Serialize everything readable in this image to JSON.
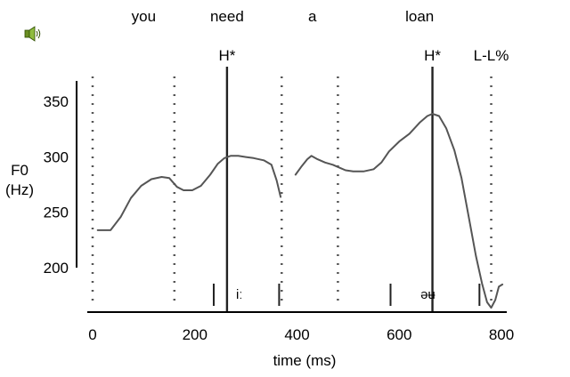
{
  "speaker_icon": "speaker-icon",
  "chart_data": {
    "type": "line",
    "title": "",
    "xlabel": "time (ms)",
    "ylabel_line1": "F0",
    "ylabel_line2": "(Hz)",
    "xlim": [
      0,
      800
    ],
    "ylim": [
      160,
      360
    ],
    "xticks": [
      0,
      200,
      400,
      600,
      800
    ],
    "xtick_labels": [
      "0",
      "200",
      "400",
      "600",
      "800"
    ],
    "yticks": [
      200,
      250,
      300,
      350
    ],
    "ytick_labels": [
      "200",
      "250",
      "300",
      "350"
    ],
    "grid": false,
    "line_color": "#555555",
    "words": [
      {
        "text": "you",
        "x": 100
      },
      {
        "text": "need",
        "x": 263
      },
      {
        "text": "a",
        "x": 430
      },
      {
        "text": "loan",
        "x": 640
      }
    ],
    "word_boundaries": [
      0,
      160,
      370,
      480,
      780
    ],
    "tones": [
      {
        "label": "H*",
        "x": 263,
        "line": true
      },
      {
        "label": "H*",
        "x": 665,
        "line": true
      },
      {
        "label": "L-L%",
        "x": 780,
        "line": false
      }
    ],
    "segments": [
      {
        "label": "iː",
        "start": 237,
        "end": 365
      },
      {
        "label": "əʉ",
        "start": 583,
        "end": 757
      }
    ],
    "series": [
      {
        "points": [
          [
            10,
            233
          ],
          [
            35,
            233
          ],
          [
            55,
            245
          ],
          [
            75,
            262
          ],
          [
            95,
            273
          ],
          [
            115,
            279
          ],
          [
            135,
            281
          ],
          [
            150,
            280
          ],
          [
            165,
            272
          ],
          [
            178,
            269
          ],
          [
            195,
            269
          ],
          [
            212,
            273
          ],
          [
            230,
            283
          ],
          [
            245,
            293
          ],
          [
            258,
            298
          ],
          [
            270,
            300
          ],
          [
            285,
            300
          ],
          [
            300,
            299
          ],
          [
            315,
            298
          ],
          [
            335,
            296
          ],
          [
            350,
            292
          ],
          [
            360,
            278
          ],
          [
            368,
            263
          ]
        ]
      },
      {
        "points": [
          [
            397,
            283
          ],
          [
            408,
            290
          ],
          [
            420,
            297
          ],
          [
            428,
            300
          ],
          [
            440,
            297
          ],
          [
            455,
            294
          ],
          [
            470,
            292
          ],
          [
            480,
            290
          ],
          [
            495,
            287
          ],
          [
            510,
            286
          ],
          [
            530,
            286
          ],
          [
            550,
            288
          ],
          [
            565,
            294
          ],
          [
            580,
            304
          ],
          [
            600,
            313
          ],
          [
            620,
            320
          ],
          [
            640,
            330
          ],
          [
            655,
            336
          ],
          [
            665,
            338
          ],
          [
            678,
            336
          ],
          [
            692,
            325
          ],
          [
            708,
            305
          ],
          [
            722,
            280
          ],
          [
            736,
            245
          ],
          [
            750,
            210
          ],
          [
            762,
            185
          ],
          [
            772,
            168
          ],
          [
            780,
            163
          ],
          [
            788,
            170
          ],
          [
            795,
            182
          ],
          [
            802,
            184
          ]
        ]
      }
    ]
  }
}
